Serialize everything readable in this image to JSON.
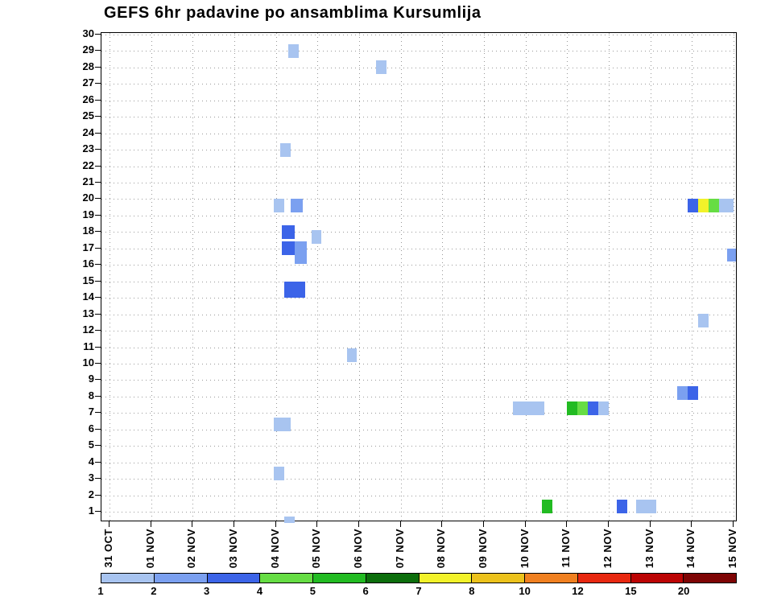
{
  "title": "GEFS 6hr padavine po ansamblima Kursumlija",
  "chart_data": {
    "type": "heatmap",
    "title": "GEFS 6hr padavine po ansamblima Kursumlija",
    "x_ticks": [
      "31 OCT",
      "01 NOV",
      "02 NOV",
      "03 NOV",
      "04 NOV",
      "05 NOV",
      "06 NOV",
      "07 NOV",
      "08 NOV",
      "09 NOV",
      "10 NOV",
      "11 NOV",
      "12 NOV",
      "13 NOV",
      "14 NOV",
      "15 NOV"
    ],
    "y_axis": {
      "min": 1,
      "max": 30,
      "step": 1
    },
    "grid": true,
    "colorbar": {
      "levels": [
        1,
        2,
        3,
        4,
        5,
        6,
        7,
        8,
        10,
        12,
        15,
        20
      ],
      "colors": [
        "#a8c4f0",
        "#7ba0f0",
        "#3c64e8",
        "#66dd44",
        "#22bb22",
        "#0c6e0c",
        "#f2f22a",
        "#ecc21c",
        "#f08020",
        "#e82810",
        "#bc0404",
        "#7e0404"
      ]
    },
    "cells": [
      {
        "member": 29,
        "day": 4.3,
        "level": 1
      },
      {
        "member": 23,
        "day": 4.1,
        "level": 1
      },
      {
        "member": 19.6,
        "day": 3.95,
        "level": 1
      },
      {
        "member": 19.6,
        "day": 4.35,
        "level": 2,
        "w": 0.3
      },
      {
        "member": 18,
        "day": 4.15,
        "level": 3,
        "w": 0.3
      },
      {
        "member": 17,
        "day": 4.15,
        "level": 3,
        "w": 0.3
      },
      {
        "member": 17,
        "day": 4.45,
        "level": 2,
        "w": 0.3
      },
      {
        "member": 17.7,
        "day": 4.85,
        "level": 1
      },
      {
        "member": 16.5,
        "day": 4.45,
        "level": 2,
        "w": 0.3
      },
      {
        "member": 14.5,
        "day": 4.2,
        "level": 3,
        "w": 0.5,
        "h": 1.15
      },
      {
        "member": 10.5,
        "day": 5.7,
        "level": 1
      },
      {
        "member": 28,
        "day": 6.4,
        "level": 1
      },
      {
        "member": 6.3,
        "day": 3.95,
        "level": 1,
        "w": 0.4
      },
      {
        "member": 3.3,
        "day": 3.95,
        "level": 1
      },
      {
        "member": 0.5,
        "day": 4.2,
        "level": 1,
        "h": 0.5
      },
      {
        "member": 7.3,
        "day": 9.7,
        "level": 1,
        "w": 0.75
      },
      {
        "member": 7.3,
        "day": 11.0,
        "level": 5
      },
      {
        "member": 7.3,
        "day": 11.25,
        "level": 4
      },
      {
        "member": 7.3,
        "day": 11.5,
        "level": 3
      },
      {
        "member": 7.3,
        "day": 11.75,
        "level": 1
      },
      {
        "member": 1.3,
        "day": 10.4,
        "level": 5
      },
      {
        "member": 1.3,
        "day": 12.2,
        "level": 3
      },
      {
        "member": 1.3,
        "day": 12.65,
        "level": 1,
        "w": 0.5
      },
      {
        "member": 12.6,
        "day": 14.15,
        "level": 1
      },
      {
        "member": 8.2,
        "day": 13.65,
        "level": 2
      },
      {
        "member": 8.2,
        "day": 13.9,
        "level": 3
      },
      {
        "member": 19.6,
        "day": 13.9,
        "level": 3
      },
      {
        "member": 19.6,
        "day": 14.15,
        "level": 7
      },
      {
        "member": 19.6,
        "day": 14.4,
        "level": 4
      },
      {
        "member": 19.6,
        "day": 14.65,
        "level": 1,
        "w": 0.35
      },
      {
        "member": 16.6,
        "day": 14.85,
        "level": 2,
        "w": 0.2
      }
    ]
  }
}
